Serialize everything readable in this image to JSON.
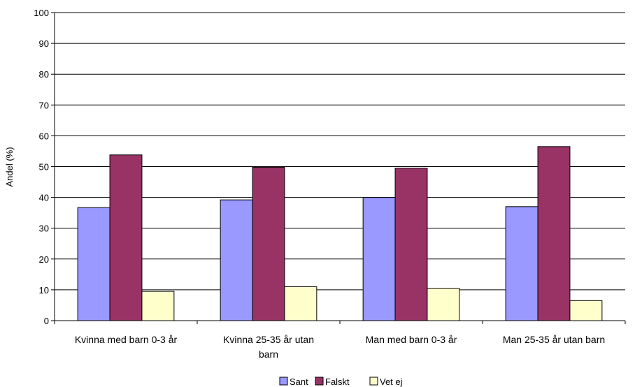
{
  "chart_data": {
    "type": "bar",
    "title": "",
    "xlabel": "",
    "ylabel": "Andel (%)",
    "ylim": [
      0,
      100
    ],
    "yticks": [
      0,
      10,
      20,
      30,
      40,
      50,
      60,
      70,
      80,
      90,
      100
    ],
    "grid": true,
    "legend_position": "bottom",
    "categories": [
      [
        "Kvinna med barn 0-3 år"
      ],
      [
        "Kvinna 25-35 år utan",
        "barn"
      ],
      [
        "Man med barn 0-3 år"
      ],
      [
        "Man 25-35 år utan barn"
      ]
    ],
    "series": [
      {
        "name": "Sant",
        "color": "#9999ff",
        "values": [
          36.7,
          39.2,
          40.0,
          37.0
        ]
      },
      {
        "name": "Falskt",
        "color": "#993366",
        "values": [
          53.8,
          49.8,
          49.5,
          56.5
        ]
      },
      {
        "name": "Vet ej",
        "color": "#ffffcc",
        "values": [
          9.5,
          11.0,
          10.5,
          6.5
        ]
      }
    ]
  }
}
